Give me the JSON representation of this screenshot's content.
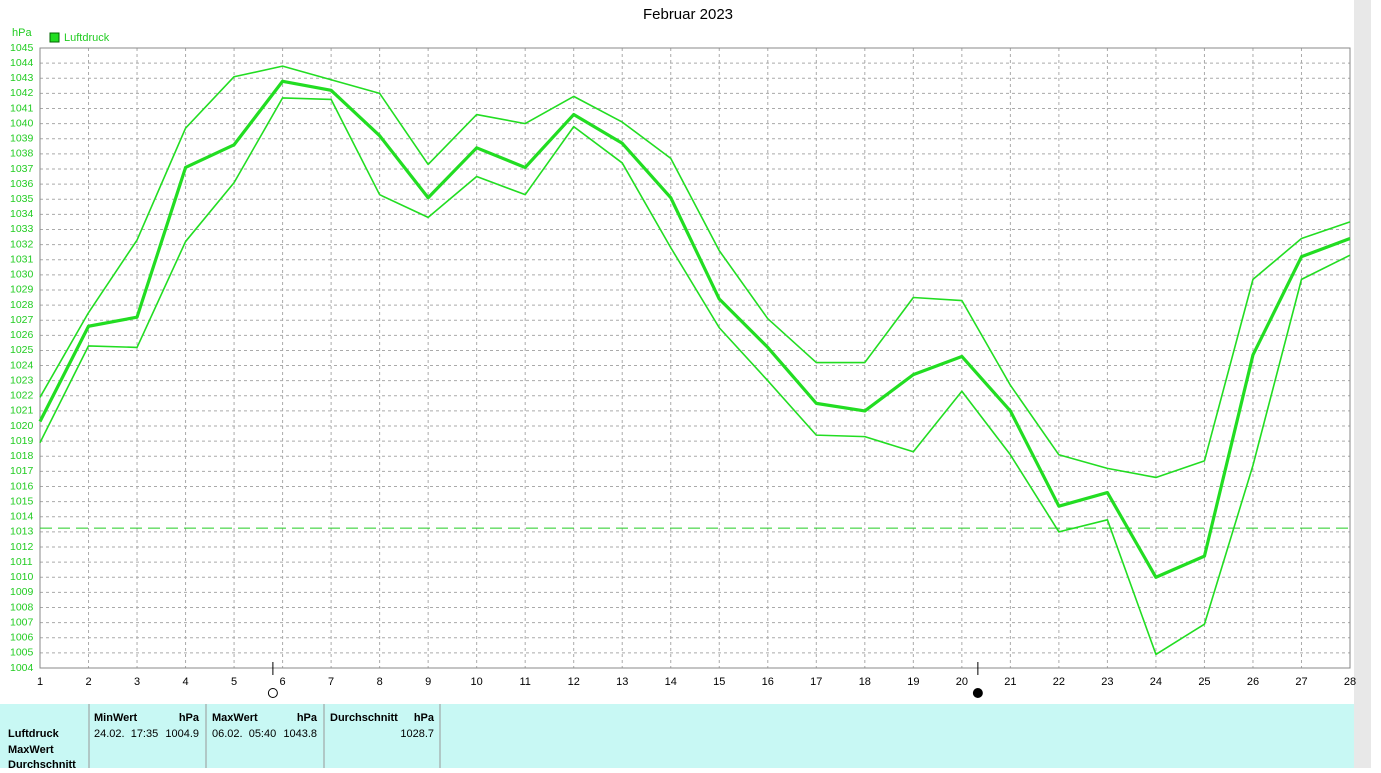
{
  "chart_data": {
    "type": "line",
    "title": "Februar 2023",
    "y_label": "hPa",
    "x": [
      1,
      2,
      3,
      4,
      5,
      6,
      7,
      8,
      9,
      10,
      11,
      12,
      13,
      14,
      15,
      16,
      17,
      18,
      19,
      20,
      21,
      22,
      23,
      24,
      25,
      26,
      27,
      28
    ],
    "xlim": [
      1,
      28
    ],
    "xticks": [
      1,
      2,
      3,
      4,
      5,
      6,
      7,
      8,
      9,
      10,
      11,
      12,
      13,
      14,
      15,
      16,
      17,
      18,
      19,
      20,
      21,
      22,
      23,
      24,
      25,
      26,
      27,
      28
    ],
    "ylim": [
      1004,
      1045
    ],
    "yticks": [
      1004,
      1005,
      1006,
      1007,
      1008,
      1009,
      1010,
      1011,
      1012,
      1013,
      1014,
      1015,
      1016,
      1017,
      1018,
      1019,
      1020,
      1021,
      1022,
      1023,
      1024,
      1025,
      1026,
      1027,
      1028,
      1029,
      1030,
      1031,
      1032,
      1033,
      1034,
      1035,
      1036,
      1037,
      1038,
      1039,
      1040,
      1041,
      1042,
      1043,
      1044,
      1045
    ],
    "grid": true,
    "reference_line": 1013.25,
    "moon_phases": {
      "full": 5.8,
      "new": 20.33
    },
    "series": [
      {
        "color": "#22dd22",
        "width": 1.6,
        "values": [
          1021.9,
          1027.5,
          1032.3,
          1039.7,
          1043.1,
          1043.8,
          1042.9,
          1042.0,
          1037.3,
          1040.6,
          1040.0,
          1041.8,
          1040.1,
          1037.7,
          1031.6,
          1027.1,
          1024.2,
          1024.2,
          1028.5,
          1028.3,
          1022.7,
          1018.1,
          1017.2,
          1016.6,
          1017.7,
          1029.7,
          1032.4,
          1033.5
        ]
      },
      {
        "name": "Luftdruck",
        "color": "#22dd22",
        "width": 3.2,
        "values": [
          1020.3,
          1026.6,
          1027.2,
          1037.1,
          1038.6,
          1042.8,
          1042.2,
          1039.2,
          1035.1,
          1038.4,
          1037.1,
          1040.6,
          1038.7,
          1035.1,
          1028.4,
          1025.2,
          1021.5,
          1021.0,
          1023.4,
          1024.6,
          1021.0,
          1014.7,
          1015.6,
          1010.0,
          1011.4,
          1024.7,
          1031.2,
          1032.4
        ]
      },
      {
        "color": "#22dd22",
        "width": 1.6,
        "values": [
          1018.9,
          1025.3,
          1025.2,
          1032.2,
          1036.1,
          1041.7,
          1041.6,
          1035.3,
          1033.8,
          1036.5,
          1035.3,
          1039.8,
          1037.4,
          1031.8,
          1026.5,
          1023.0,
          1019.4,
          1019.3,
          1018.3,
          1022.3,
          1018.1,
          1013.0,
          1013.8,
          1004.9,
          1006.9,
          1017.4,
          1029.7,
          1031.3
        ]
      }
    ]
  },
  "stats_table": {
    "row_labels": [
      "Luftdruck",
      "MaxWert",
      "Durchschnitt"
    ],
    "columns": [
      {
        "title": "MinWert",
        "unit": "hPa",
        "time": "24.02.  17:35",
        "value": 1004.9
      },
      {
        "title": "MaxWert",
        "unit": "hPa",
        "time": "06.02.  05:40",
        "value": 1043.8
      },
      {
        "title": "Durchschnitt",
        "unit": "hPa",
        "value": 1028.7
      }
    ]
  }
}
